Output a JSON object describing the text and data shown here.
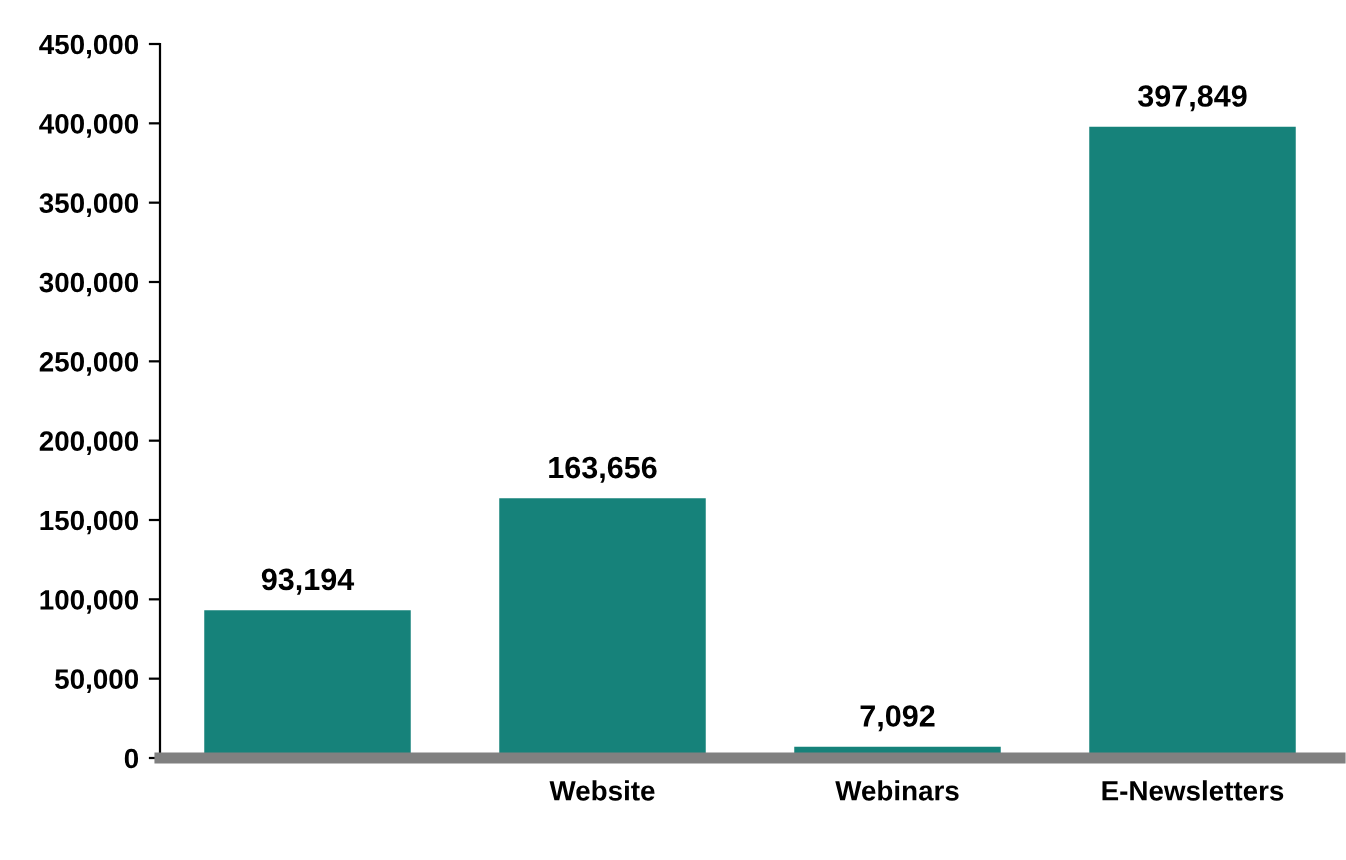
{
  "chart_data": {
    "type": "bar",
    "categories": [
      null,
      "Website",
      "Webinars",
      "E-Newsletters"
    ],
    "values": [
      93194,
      163656,
      7092,
      397849
    ],
    "color": "#16827a",
    "ylim": [
      0,
      450000
    ],
    "yticks": [
      {
        "value": 0,
        "label": "0"
      },
      {
        "value": 50000,
        "label": "50,000"
      },
      {
        "value": 100000,
        "label": "100,000"
      },
      {
        "value": 150000,
        "label": "150,000"
      },
      {
        "value": 200000,
        "label": "200,000"
      },
      {
        "value": 250000,
        "label": "250,000"
      },
      {
        "value": 300000,
        "label": "300,000"
      },
      {
        "value": 350000,
        "label": "350,000"
      },
      {
        "value": 400000,
        "label": "400,000"
      },
      {
        "value": 450000,
        "label": "450,000"
      }
    ],
    "value_labels": [
      "93,194",
      "163,656",
      "7,092",
      "397,849"
    ],
    "grid": false,
    "legend": false
  }
}
